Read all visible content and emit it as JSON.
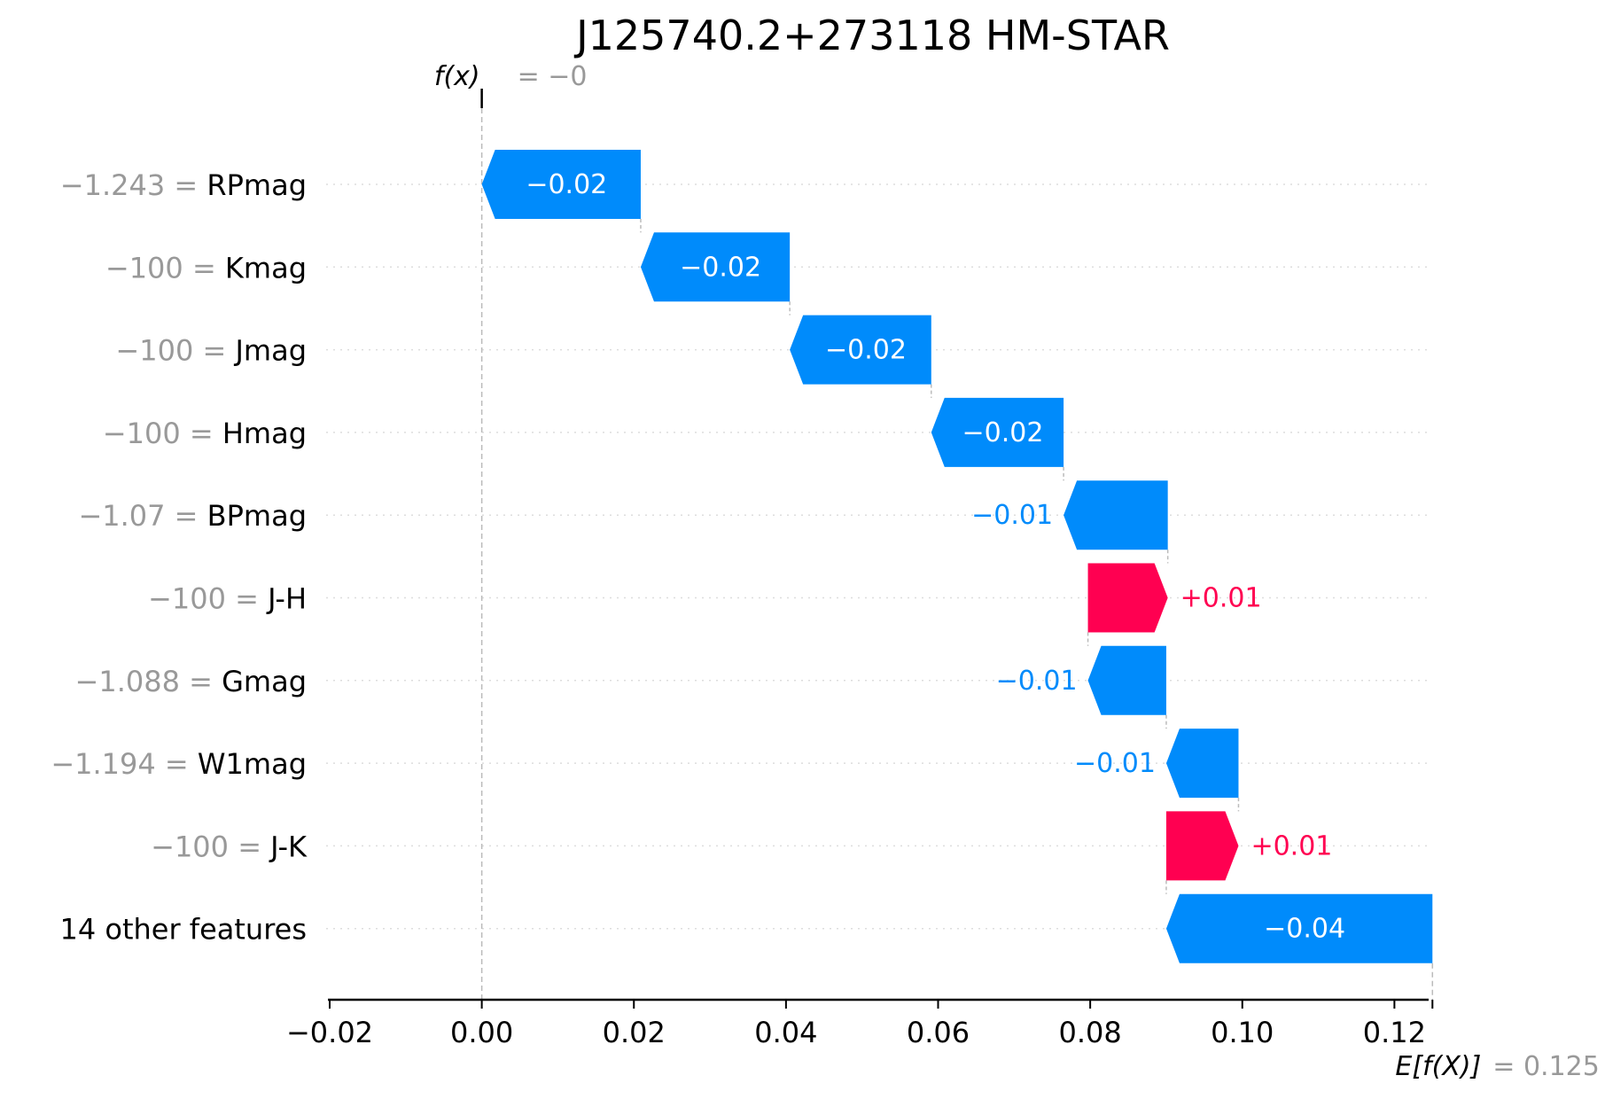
{
  "chart_data": {
    "type": "waterfall",
    "title": "J125740.2+273118 HM-STAR",
    "fx_label": "f(x)",
    "fx_value": "= −0",
    "expected_label": "E[f(X)]",
    "expected_value": "= 0.125",
    "base_value": 0.125,
    "final_value": 0.0,
    "xlim": [
      -0.02,
      0.1245
    ],
    "xticks": [
      -0.02,
      0.0,
      0.02,
      0.04,
      0.06,
      0.08,
      0.1,
      0.12
    ],
    "xtick_labels": [
      "−0.02",
      "0.00",
      "0.02",
      "0.04",
      "0.06",
      "0.08",
      "0.10",
      "0.12"
    ],
    "features": [
      {
        "value": "−1.243 =",
        "name": "RPmag",
        "start": 0.0209,
        "end": 0.0,
        "label": "−0.02"
      },
      {
        "value": "−100 =",
        "name": "Kmag",
        "start": 0.0405,
        "end": 0.0209,
        "label": "−0.02"
      },
      {
        "value": "−100 =",
        "name": "Jmag",
        "start": 0.0591,
        "end": 0.0405,
        "label": "−0.02"
      },
      {
        "value": "−100 =",
        "name": "Hmag",
        "start": 0.0765,
        "end": 0.0591,
        "label": "−0.02"
      },
      {
        "value": "−1.07 =",
        "name": "BPmag",
        "start": 0.0902,
        "end": 0.0765,
        "label": "−0.01"
      },
      {
        "value": "−100 =",
        "name": "J-H",
        "start": 0.0797,
        "end": 0.0902,
        "label": "+0.01"
      },
      {
        "value": "−1.088 =",
        "name": "Gmag",
        "start": 0.09,
        "end": 0.0797,
        "label": "−0.01"
      },
      {
        "value": "−1.194 =",
        "name": "W1mag",
        "start": 0.0995,
        "end": 0.09,
        "label": "−0.01"
      },
      {
        "value": "−100 =",
        "name": "J-K",
        "start": 0.09,
        "end": 0.0995,
        "label": "+0.01"
      },
      {
        "value": "",
        "name": "14 other features",
        "start": 0.125,
        "end": 0.09,
        "label": "−0.04"
      }
    ],
    "colors": {
      "negative": "#008bfb",
      "positive": "#ff0051",
      "muted": "#999999",
      "text": "#000000",
      "grid": "#cccccc"
    }
  }
}
